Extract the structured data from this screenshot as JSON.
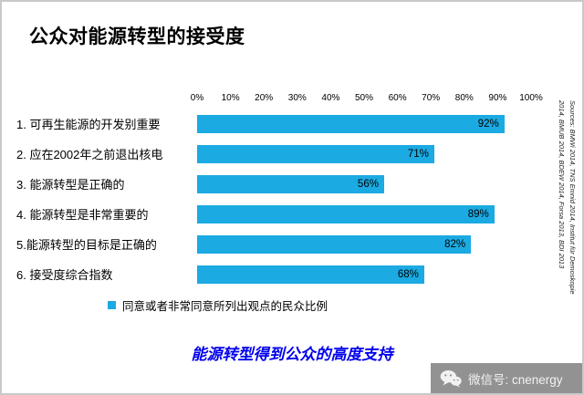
{
  "slide": {
    "title": "公众对能源转型的接受度",
    "footer_message": "能源转型得到公众的高度支持",
    "source_note": {
      "line1": "Sources: BMWi 2014, TNS Emnid 2014, Institut für Demoskopie",
      "line2": "2014, BMUB 2014, BDEW 2014, Forsa 2013, BDI 2013"
    },
    "watermark": {
      "icon": "wechat-icon",
      "label": "微信号: cnenergy"
    }
  },
  "colors": {
    "bar": "#1BAAE2",
    "footer_text": "#0000EE",
    "watermark_bg": "#929292",
    "value_label_text": "#000000"
  },
  "chart_data": {
    "type": "bar",
    "orientation": "horizontal",
    "title": "公众对能源转型的接受度",
    "categories": [
      "1. 可再生能源的开发别重要",
      "2. 应在2002年之前退出核电",
      "3. 能源转型是正确的",
      "4. 能源转型是非常重要的",
      "5.能源转型的目标是正确的",
      "6. 接受度综合指数"
    ],
    "values": [
      92,
      71,
      56,
      89,
      82,
      68
    ],
    "value_labels": [
      "92%",
      "71%",
      "56%",
      "89%",
      "82%",
      "68%"
    ],
    "axis_ticks": [
      "0%",
      "10%",
      "20%",
      "30%",
      "40%",
      "50%",
      "60%",
      "70%",
      "80%",
      "90%",
      "100%"
    ],
    "xlim": [
      0,
      100
    ],
    "grid": false,
    "legend": "同意或者非常同意所列出观点的民众比例",
    "legend_position": "bottom"
  }
}
